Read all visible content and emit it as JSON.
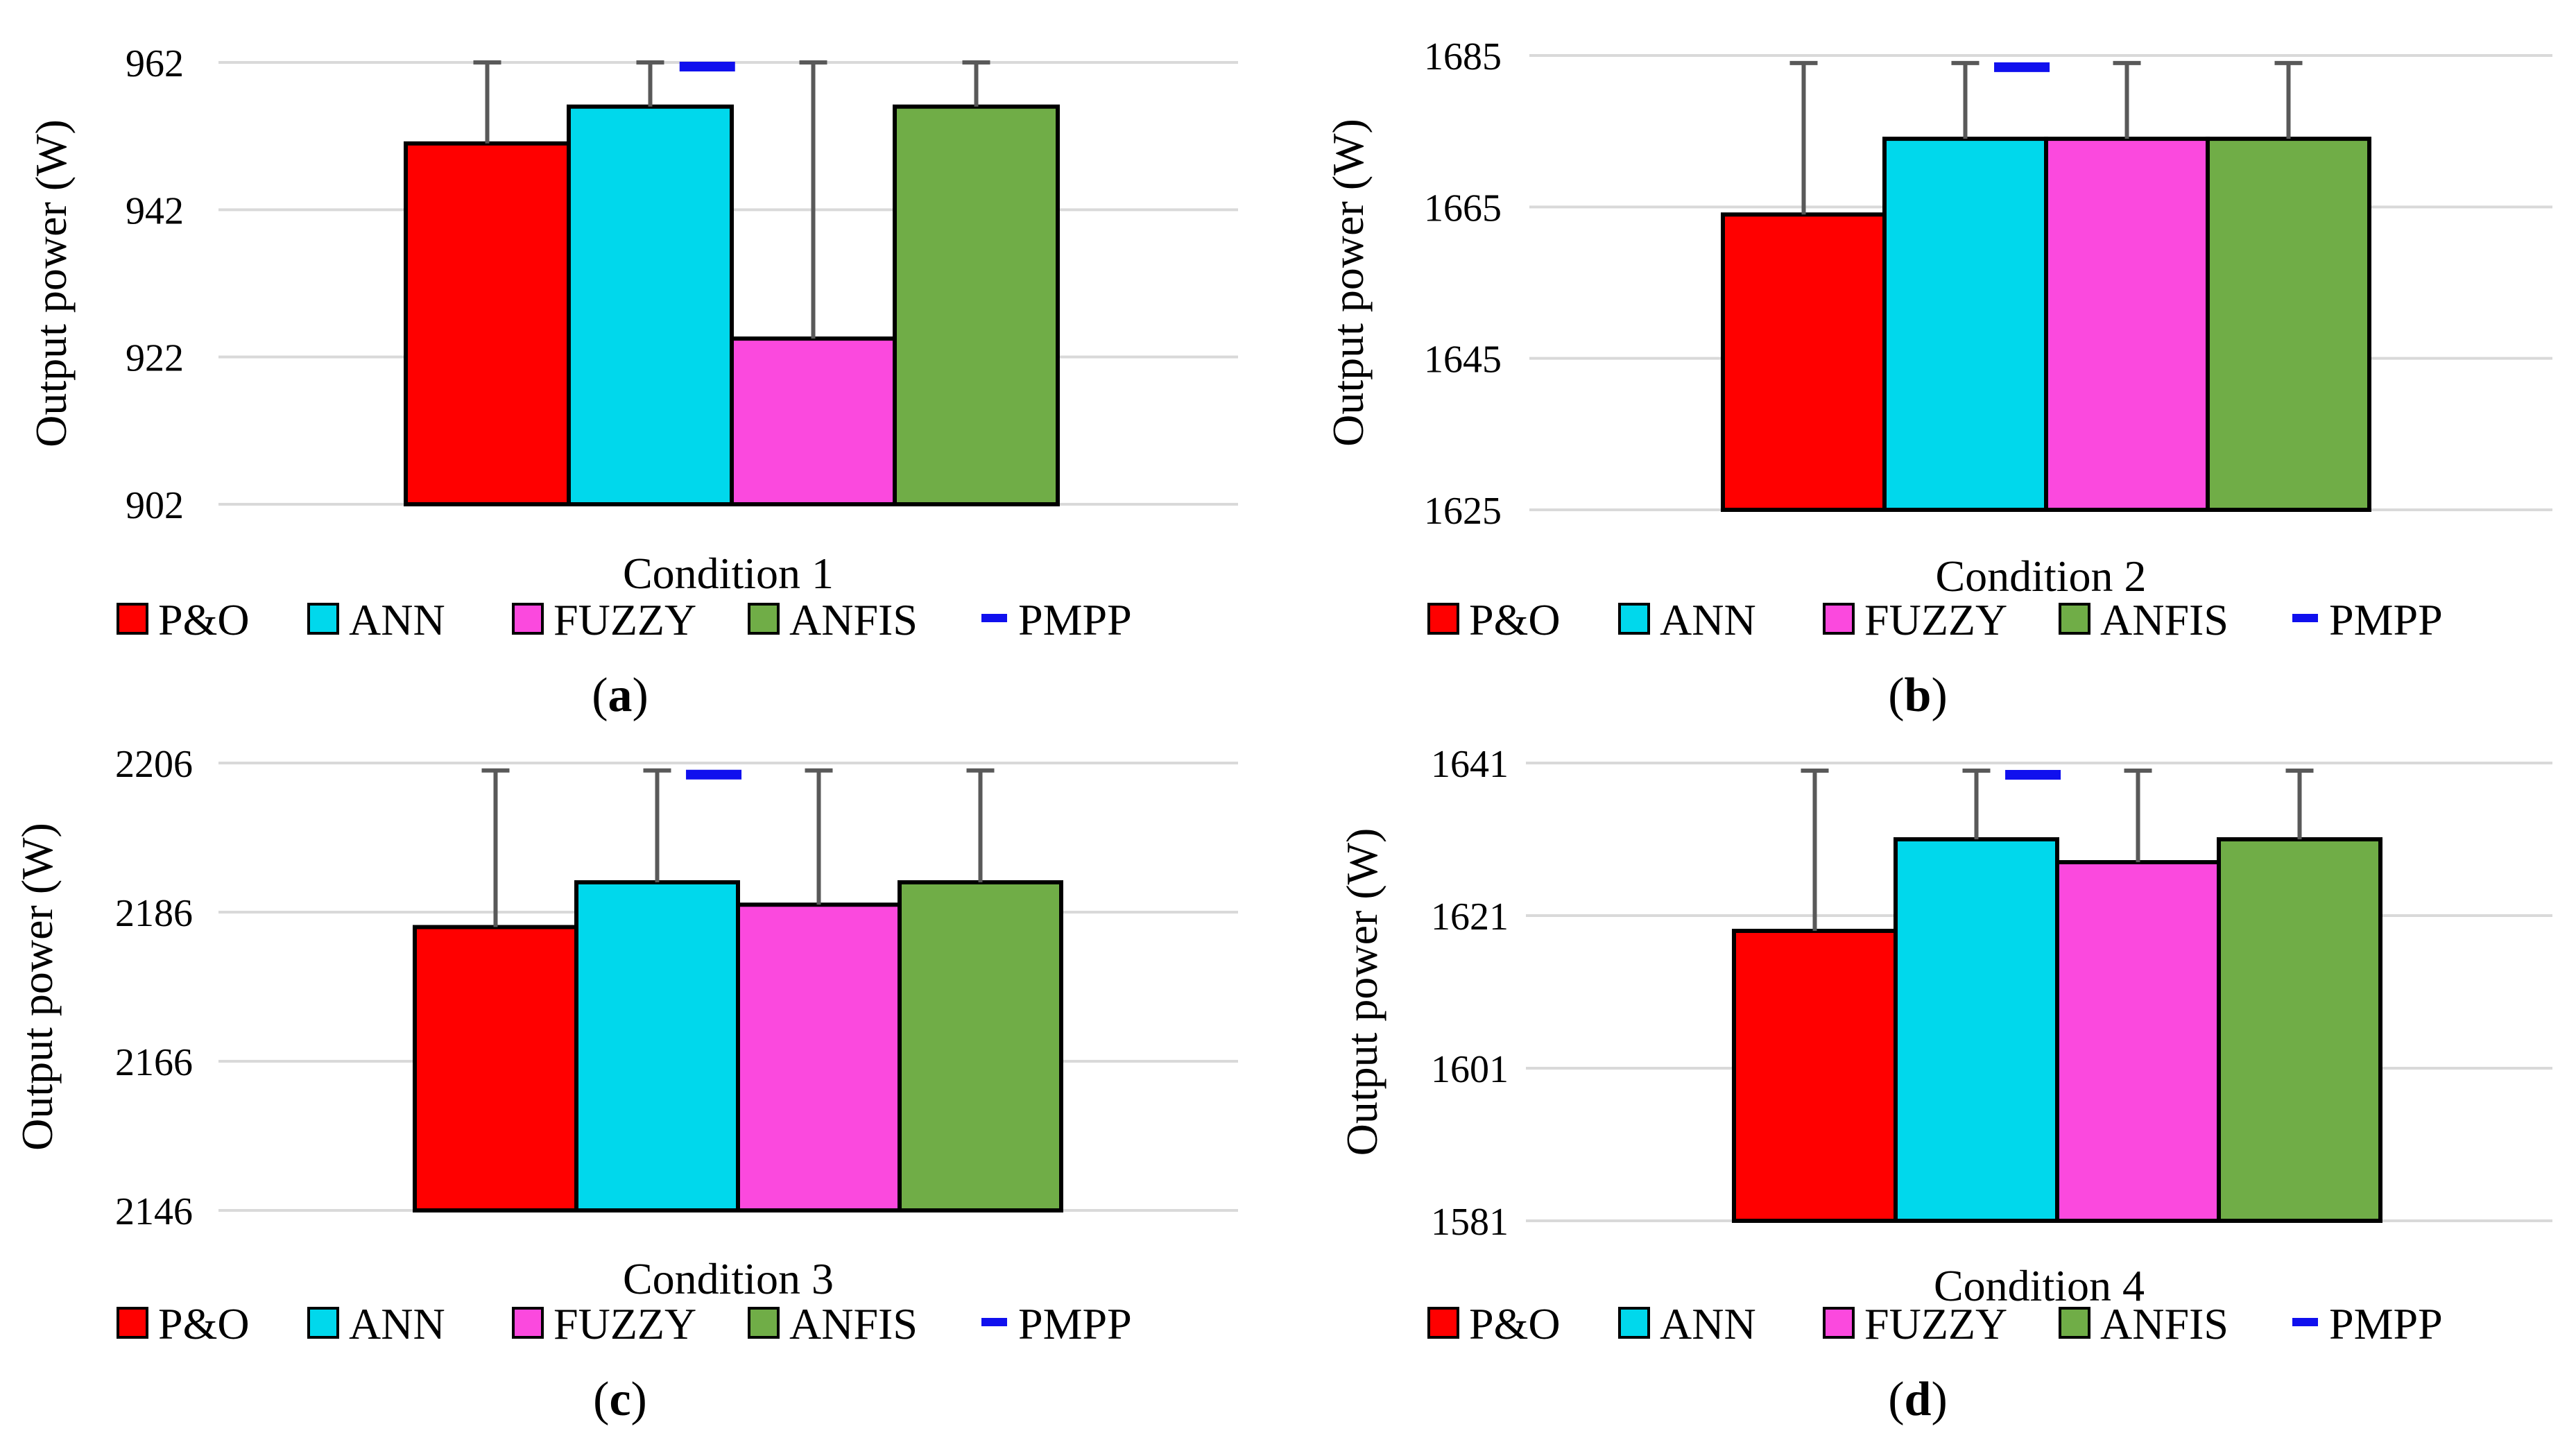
{
  "chart_data": [
    {
      "type": "bar",
      "caption": "a",
      "ylabel": "Output power (W)",
      "xlabel": "Condition 1",
      "ylim": [
        902,
        962
      ],
      "ticks": [
        902,
        922,
        942,
        962
      ],
      "series": [
        {
          "name": "P&O",
          "value": 951,
          "error_upper": 962
        },
        {
          "name": "ANN",
          "value": 956,
          "error_upper": 962
        },
        {
          "name": "FUZZY",
          "value": 924.5,
          "error_upper": 962
        },
        {
          "name": "ANFIS",
          "value": 956,
          "error_upper": 962
        }
      ],
      "pmpp": 962
    },
    {
      "type": "bar",
      "caption": "b",
      "ylabel": "Output power (W)",
      "xlabel": "Condition 2",
      "ylim": [
        1625,
        1685
      ],
      "ticks": [
        1625,
        1645,
        1665,
        1685
      ],
      "series": [
        {
          "name": "P&O",
          "value": 1664,
          "error_upper": 1684
        },
        {
          "name": "ANN",
          "value": 1674,
          "error_upper": 1684
        },
        {
          "name": "FUZZY",
          "value": 1674,
          "error_upper": 1684
        },
        {
          "name": "ANFIS",
          "value": 1674,
          "error_upper": 1684
        }
      ],
      "pmpp": 1684
    },
    {
      "type": "bar",
      "caption": "c",
      "ylabel": "Output power (W)",
      "xlabel": "Condition 3",
      "ylim": [
        2146,
        2206
      ],
      "ticks": [
        2146,
        2166,
        2186,
        2206
      ],
      "series": [
        {
          "name": "P&O",
          "value": 2184,
          "error_upper": 2205
        },
        {
          "name": "ANN",
          "value": 2190,
          "error_upper": 2205
        },
        {
          "name": "FUZZY",
          "value": 2187,
          "error_upper": 2205
        },
        {
          "name": "ANFIS",
          "value": 2190,
          "error_upper": 2205
        }
      ],
      "pmpp": 2205
    },
    {
      "type": "bar",
      "caption": "d",
      "ylabel": "Output power (W)",
      "xlabel": "Condition 4",
      "ylim": [
        1581,
        1641
      ],
      "ticks": [
        1581,
        1601,
        1621,
        1641
      ],
      "series": [
        {
          "name": "P&O",
          "value": 1619,
          "error_upper": 1640
        },
        {
          "name": "ANN",
          "value": 1631,
          "error_upper": 1640
        },
        {
          "name": "FUZZY",
          "value": 1628,
          "error_upper": 1640
        },
        {
          "name": "ANFIS",
          "value": 1631,
          "error_upper": 1640
        }
      ],
      "pmpp": 1640
    }
  ],
  "legend": {
    "items": [
      {
        "name": "P&O",
        "color": "#ff0000",
        "kind": "box"
      },
      {
        "name": "ANN",
        "color": "#00d8ec",
        "kind": "box"
      },
      {
        "name": "FUZZY",
        "color": "#fb49de",
        "kind": "box"
      },
      {
        "name": "ANFIS",
        "color": "#70ad47",
        "kind": "box"
      },
      {
        "name": "PMPP",
        "color": "#1010ee",
        "kind": "dash"
      }
    ]
  },
  "colors": {
    "grid": "#d9d9d9",
    "error_bar": "#595959",
    "bar_outline": "#000000"
  }
}
